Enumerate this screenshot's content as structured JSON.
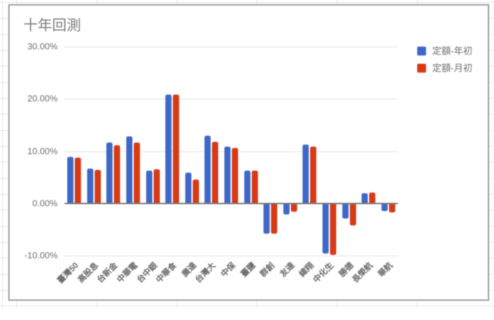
{
  "app": {
    "context": "spreadsheet with embedded chart",
    "grid_color": "#e2e3e3",
    "chart_border_color": "#9b9b9b"
  },
  "chart": {
    "title": "十年回測"
  },
  "chart_data": {
    "type": "bar",
    "title": "十年回測",
    "xlabel": "",
    "ylabel": "",
    "categories": [
      "臺灣50",
      "高股息",
      "台新金",
      "中華電",
      "台中銀",
      "中華食",
      "廣達",
      "台灣大",
      "中保",
      "臺鹽",
      "群創",
      "友達",
      "緯翔",
      "中化生",
      "勝德",
      "長榮航",
      "華航"
    ],
    "series": [
      {
        "name": "定額-年初",
        "color": "#3e68c8",
        "values": [
          8.9,
          6.7,
          11.6,
          12.8,
          6.3,
          20.9,
          5.9,
          13.0,
          10.8,
          6.3,
          -5.9,
          -2.2,
          11.3,
          -9.7,
          -2.9,
          1.9,
          -1.5
        ]
      },
      {
        "name": "定額-月初",
        "color": "#d83a16",
        "values": [
          8.8,
          6.4,
          11.1,
          11.7,
          6.5,
          20.8,
          4.6,
          11.8,
          10.6,
          6.3,
          -5.8,
          -1.6,
          10.8,
          -9.9,
          -4.2,
          2.0,
          -1.7
        ]
      }
    ],
    "value_format": "percent",
    "y_ticks": [
      {
        "value": 30,
        "label": "30.00%"
      },
      {
        "value": 20,
        "label": "20.00%"
      },
      {
        "value": 10,
        "label": "10.00%"
      },
      {
        "value": 0,
        "label": "0.00%"
      },
      {
        "value": -10,
        "label": "-10.00%"
      }
    ],
    "ylim": [
      -10,
      30
    ],
    "grid": true,
    "legend_position": "top-right"
  }
}
